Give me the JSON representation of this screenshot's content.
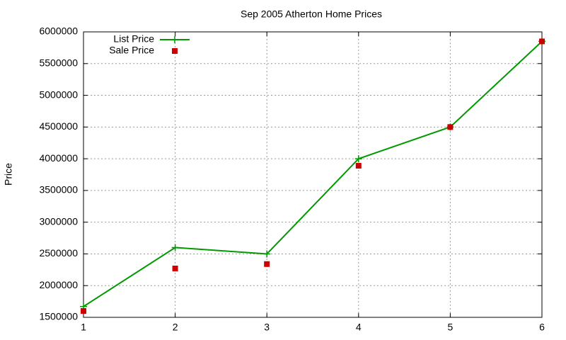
{
  "chart_data": {
    "type": "line",
    "title": "Sep 2005 Atherton Home Prices",
    "y_label": "Price",
    "x": [
      1,
      2,
      3,
      4,
      5,
      6
    ],
    "series": [
      {
        "name": "List Price",
        "color": "#009900",
        "style": "linespoints",
        "marker": "plus",
        "values": [
          1670000,
          2600000,
          2500000,
          4000000,
          4500000,
          5850000
        ]
      },
      {
        "name": "Sale Price",
        "color": "#cc0000",
        "style": "points",
        "marker": "square",
        "values": [
          1600000,
          2270000,
          2340000,
          3890000,
          4500000,
          5850000
        ]
      }
    ],
    "xlim": [
      1,
      6
    ],
    "xticks": [
      1,
      2,
      3,
      4,
      5,
      6
    ],
    "ylim": [
      1500000,
      6000000
    ],
    "yticks": [
      1500000,
      2000000,
      2500000,
      3000000,
      3500000,
      4000000,
      4500000,
      5000000,
      5500000,
      6000000
    ],
    "grid": true,
    "legend": "top-left"
  }
}
